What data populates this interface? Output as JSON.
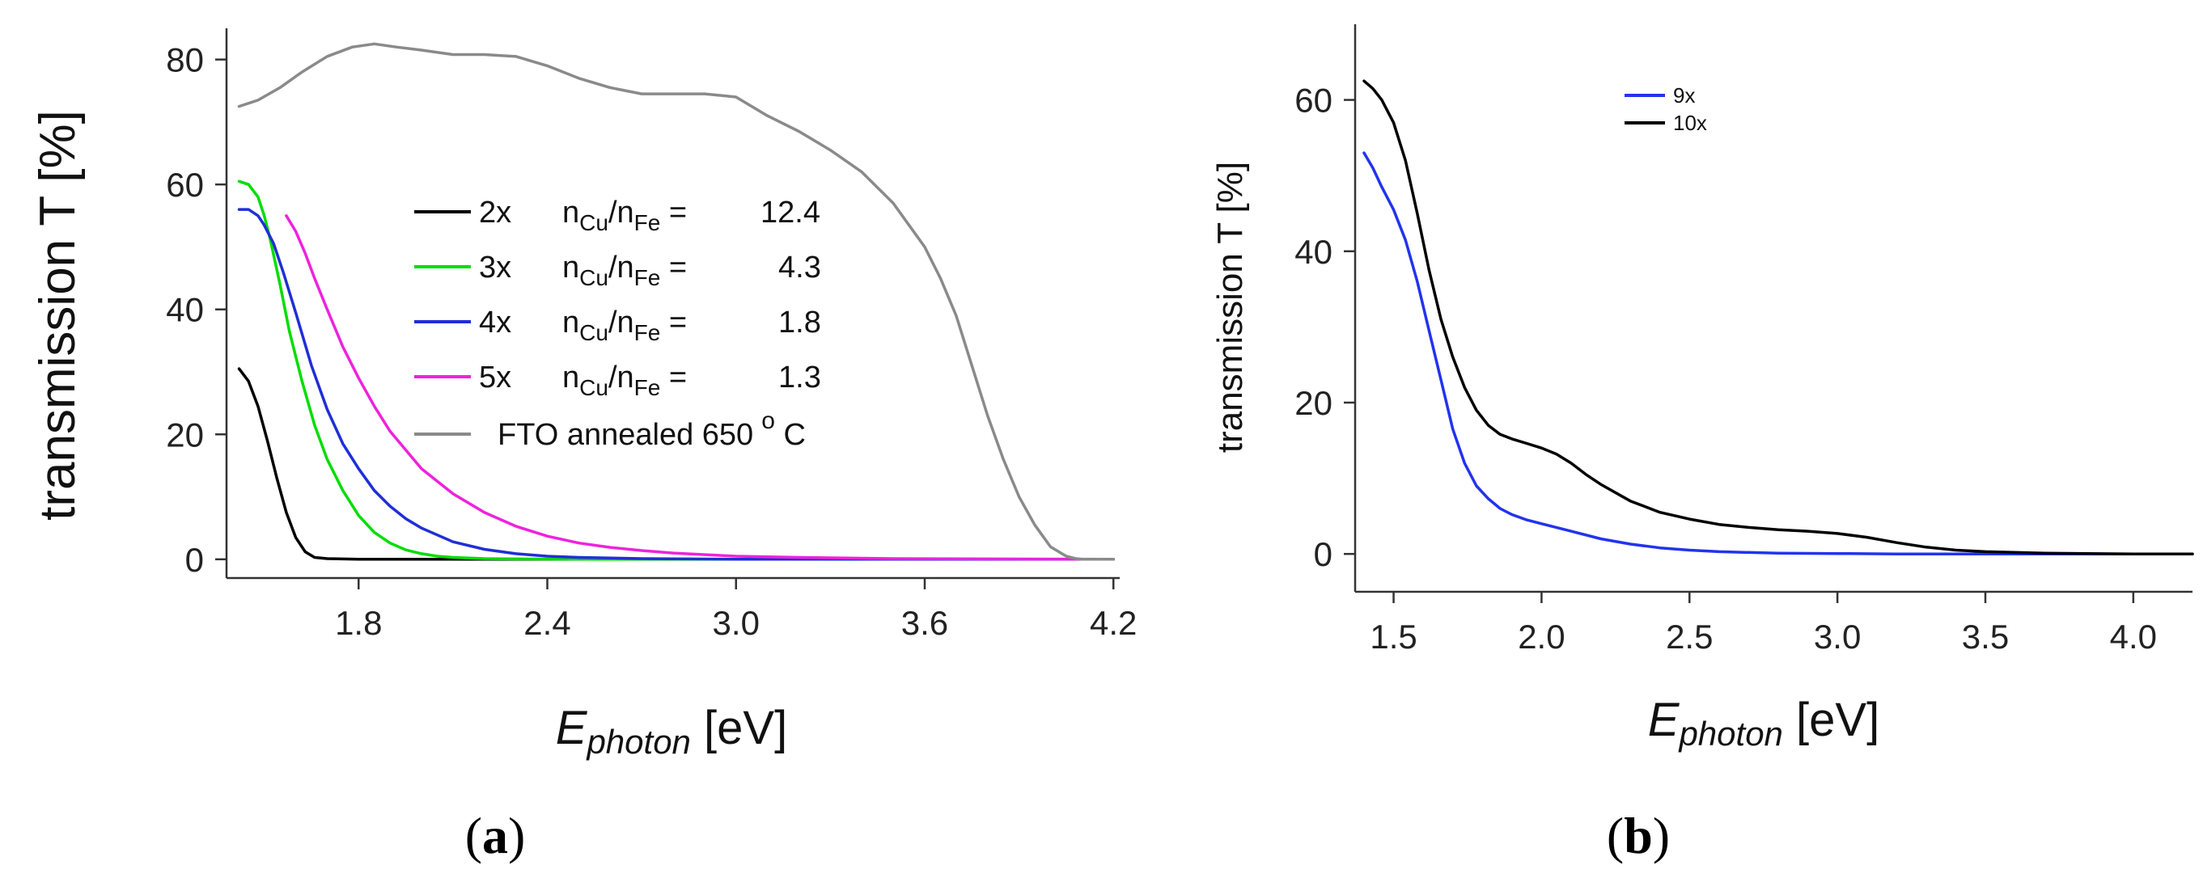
{
  "chart_data": [
    {
      "type": "line",
      "panel_label": "(a)",
      "panel_letter": "a",
      "xlabel": "E",
      "xlabel_sub": "photon",
      "xlabel_unit": " [eV]",
      "ylabel": "transmission  T [%]",
      "xlim": [
        1.38,
        4.22
      ],
      "ylim": [
        -3,
        85
      ],
      "xticks": [
        "1.8",
        "2.4",
        "3.0",
        "3.6",
        "4.2"
      ],
      "yticks": [
        "0",
        "20",
        "40",
        "60",
        "80"
      ],
      "legend_position": "center",
      "series": [
        {
          "name": "2x",
          "color": "#000000",
          "legend_ratio": "12.4",
          "x": [
            1.42,
            1.45,
            1.48,
            1.51,
            1.54,
            1.57,
            1.6,
            1.63,
            1.66,
            1.7,
            1.75,
            1.8,
            2.0,
            2.5,
            3.0,
            3.5,
            4.0,
            4.2
          ],
          "y": [
            30.5,
            28.5,
            24.5,
            19.0,
            13.0,
            7.5,
            3.5,
            1.2,
            0.3,
            0.1,
            0.05,
            0.0,
            0.0,
            0.0,
            0.0,
            0.0,
            0.0,
            0.0
          ]
        },
        {
          "name": "3x",
          "color": "#00dd00",
          "legend_ratio": "4.3",
          "x": [
            1.42,
            1.45,
            1.48,
            1.5,
            1.52,
            1.55,
            1.58,
            1.62,
            1.66,
            1.7,
            1.75,
            1.8,
            1.85,
            1.9,
            1.95,
            2.0,
            2.05,
            2.1,
            2.2,
            2.3,
            2.5,
            3.0,
            4.2
          ],
          "y": [
            60.5,
            60.0,
            58.0,
            55.0,
            51.0,
            44.0,
            36.5,
            28.5,
            21.5,
            16.0,
            11.0,
            7.0,
            4.3,
            2.6,
            1.5,
            0.9,
            0.5,
            0.3,
            0.1,
            0.05,
            0.0,
            0.0,
            0.0
          ]
        },
        {
          "name": "4x",
          "color": "#1f2fd6",
          "legend_ratio": "1.8",
          "x": [
            1.42,
            1.45,
            1.48,
            1.5,
            1.53,
            1.56,
            1.6,
            1.65,
            1.7,
            1.75,
            1.8,
            1.85,
            1.9,
            1.95,
            2.0,
            2.1,
            2.2,
            2.3,
            2.4,
            2.5,
            2.7,
            3.0,
            4.2
          ],
          "y": [
            56.0,
            56.0,
            55.0,
            53.5,
            50.5,
            46.0,
            39.5,
            31.0,
            24.0,
            18.5,
            14.5,
            11.0,
            8.5,
            6.5,
            5.0,
            2.8,
            1.6,
            0.9,
            0.5,
            0.3,
            0.1,
            0.0,
            0.0
          ]
        },
        {
          "name": "5x",
          "color": "#ee22dd",
          "legend_ratio": "1.3",
          "x": [
            1.57,
            1.6,
            1.63,
            1.66,
            1.7,
            1.75,
            1.8,
            1.85,
            1.9,
            2.0,
            2.1,
            2.2,
            2.3,
            2.4,
            2.5,
            2.6,
            2.7,
            2.8,
            3.0,
            3.2,
            3.5,
            4.2
          ],
          "y": [
            55.0,
            52.5,
            49.0,
            45.0,
            40.0,
            34.0,
            29.0,
            24.5,
            20.5,
            14.5,
            10.5,
            7.5,
            5.3,
            3.7,
            2.6,
            1.9,
            1.4,
            1.0,
            0.5,
            0.3,
            0.1,
            0.0
          ]
        },
        {
          "name": "FTO annealed 650",
          "color": "#8a8a8a",
          "x": [
            1.42,
            1.48,
            1.55,
            1.62,
            1.7,
            1.78,
            1.85,
            1.92,
            2.0,
            2.1,
            2.2,
            2.3,
            2.4,
            2.5,
            2.6,
            2.7,
            2.8,
            2.9,
            3.0,
            3.1,
            3.2,
            3.3,
            3.4,
            3.5,
            3.6,
            3.65,
            3.7,
            3.75,
            3.8,
            3.85,
            3.9,
            3.95,
            4.0,
            4.05,
            4.08,
            4.1,
            4.2
          ],
          "y": [
            72.5,
            73.5,
            75.5,
            78.0,
            80.5,
            82.0,
            82.5,
            82.0,
            81.5,
            80.8,
            80.8,
            80.5,
            79.0,
            77.0,
            75.5,
            74.5,
            74.5,
            74.5,
            74.0,
            71.0,
            68.5,
            65.5,
            62.0,
            57.0,
            50.0,
            45.0,
            39.0,
            31.0,
            23.0,
            16.0,
            10.0,
            5.5,
            2.0,
            0.5,
            0.1,
            0.0,
            0.0
          ]
        }
      ],
      "legend_ratio_label_n": "n",
      "legend_ratio_sub1": "Cu",
      "legend_ratio_slash": "/n",
      "legend_ratio_sub2": "Fe",
      "legend_ratio_eq": " = ",
      "fto_degree": "o",
      "fto_unit": " C"
    },
    {
      "type": "line",
      "panel_label": "(b)",
      "panel_letter": "b",
      "xlabel": "E",
      "xlabel_sub": "photon",
      "xlabel_unit": " [eV]",
      "ylabel": "transmission  T [%]",
      "xlim": [
        1.37,
        4.2
      ],
      "ylim": [
        -5,
        70
      ],
      "xticks": [
        "1.5",
        "2.0",
        "2.5",
        "3.0",
        "3.5",
        "4.0"
      ],
      "yticks": [
        "0",
        "20",
        "40",
        "60"
      ],
      "legend_position": "top-center",
      "series": [
        {
          "name": "9x",
          "color": "#2233ee",
          "x": [
            1.4,
            1.43,
            1.46,
            1.5,
            1.54,
            1.58,
            1.62,
            1.66,
            1.7,
            1.74,
            1.78,
            1.82,
            1.86,
            1.9,
            1.95,
            2.0,
            2.05,
            2.1,
            2.2,
            2.3,
            2.4,
            2.5,
            2.6,
            2.8,
            3.0,
            3.2,
            3.5,
            4.2
          ],
          "y": [
            53.0,
            51.0,
            48.5,
            45.5,
            41.5,
            36.0,
            29.5,
            23.0,
            16.5,
            12.0,
            9.0,
            7.3,
            6.0,
            5.2,
            4.5,
            4.0,
            3.5,
            3.0,
            2.0,
            1.3,
            0.8,
            0.5,
            0.3,
            0.1,
            0.05,
            0.0,
            0.0,
            0.0
          ]
        },
        {
          "name": "10x",
          "color": "#000000",
          "x": [
            1.4,
            1.43,
            1.46,
            1.5,
            1.54,
            1.58,
            1.62,
            1.66,
            1.7,
            1.74,
            1.78,
            1.82,
            1.86,
            1.9,
            1.95,
            2.0,
            2.05,
            2.1,
            2.15,
            2.2,
            2.3,
            2.4,
            2.5,
            2.6,
            2.7,
            2.8,
            2.9,
            3.0,
            3.1,
            3.2,
            3.3,
            3.4,
            3.5,
            3.7,
            4.0,
            4.2
          ],
          "y": [
            62.5,
            61.5,
            60.0,
            57.0,
            52.0,
            45.0,
            37.5,
            31.0,
            26.0,
            22.0,
            19.0,
            17.0,
            15.8,
            15.2,
            14.6,
            14.0,
            13.2,
            12.0,
            10.5,
            9.2,
            7.0,
            5.5,
            4.6,
            3.9,
            3.5,
            3.2,
            3.0,
            2.7,
            2.2,
            1.5,
            0.9,
            0.5,
            0.3,
            0.1,
            0.0,
            0.0
          ]
        }
      ]
    }
  ]
}
